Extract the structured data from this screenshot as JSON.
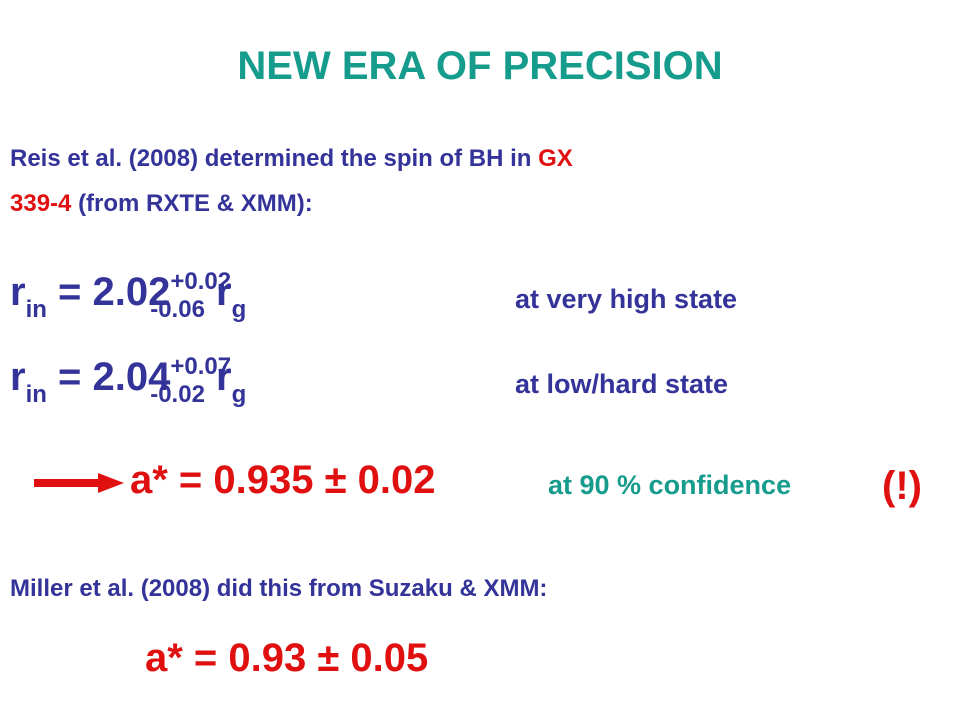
{
  "title": "NEW ERA OF PRECISION",
  "reis_intro": {
    "before": "Reis et al. (2008) determined the spin of BH in",
    "source": [
      "GX",
      "339-4"
    ],
    "after": "(from RXTE & XMM):"
  },
  "equations": [
    {
      "symbol": "r",
      "sub": "in",
      "eq": "= 2.02",
      "plus": "+0.02",
      "minus": "-0.06",
      "unit": "r",
      "unit_sub": "g",
      "note": "at very high state"
    },
    {
      "symbol": "r",
      "sub": "in",
      "eq": "= 2.04",
      "plus": "+0.07",
      "minus": "-0.02",
      "unit": "r",
      "unit_sub": "g",
      "note": "at low/hard state"
    }
  ],
  "result": {
    "value": "a* = 0.935 ± 0.02",
    "note": "at 90 % confidence",
    "mark": "(!)"
  },
  "miller_intro": "Miller et al. (2008) did this from Suzaku & XMM:",
  "miller_result": "a* = 0.93 ± 0.05"
}
